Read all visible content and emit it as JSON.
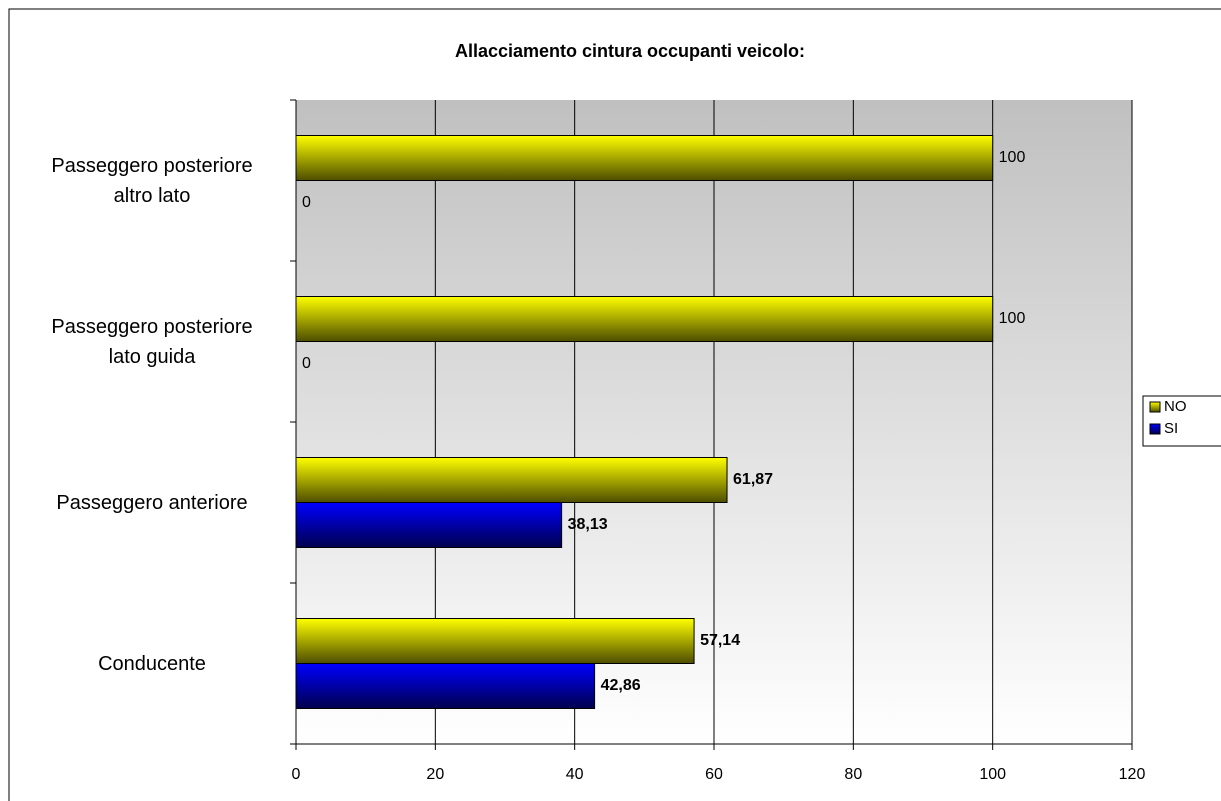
{
  "chart_data": {
    "type": "hbar",
    "title": "Allacciamento cintura occupanti veicolo:",
    "categories": [
      "Passeggero posteriore\naltro lato",
      "Passeggero posteriore\nlato guida",
      "Passeggero anteriore",
      "Conducente"
    ],
    "series": [
      {
        "name": "NO",
        "color": "#ffff00",
        "values": [
          100,
          100,
          61.87,
          57.14
        ],
        "value_labels": [
          "100",
          "100",
          "61,87",
          "57,14"
        ]
      },
      {
        "name": "SI",
        "color": "#0000ff",
        "values": [
          0,
          0,
          38.13,
          42.86
        ],
        "value_labels": [
          "0",
          "0",
          "38,13",
          "42,86"
        ]
      }
    ],
    "xlim": [
      0,
      120
    ],
    "xticks": [
      0,
      20,
      40,
      60,
      80,
      100,
      120
    ],
    "grid": true,
    "legend": "right"
  }
}
